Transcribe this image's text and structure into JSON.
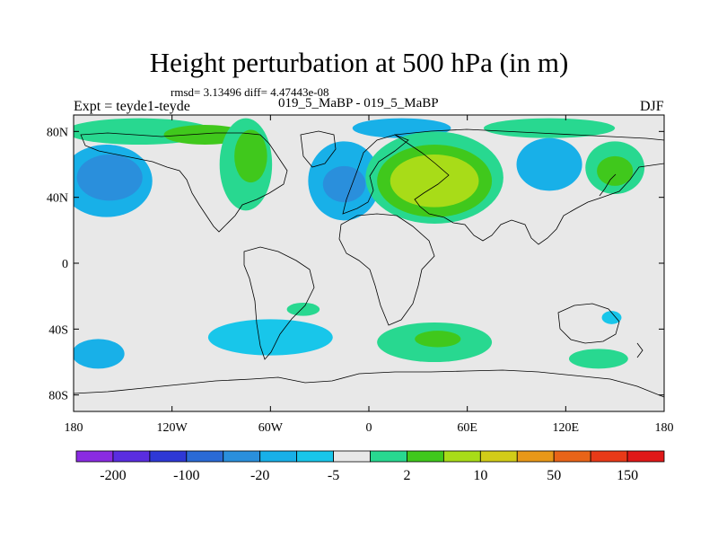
{
  "chart_data": {
    "type": "contour-map",
    "title": "Height perturbation at 500 hPa (in m)",
    "stats": "rmsd= 3.13496 diff= 4.47443e-08",
    "left_label": "Expt = teyde1-teyde",
    "center_label": "019_5_MaBP - 019_5_MaBP",
    "right_label": "DJF",
    "xlim": [
      -180,
      180
    ],
    "ylim": [
      -90,
      90
    ],
    "x_ticks": [
      {
        "value": -180,
        "label": "180"
      },
      {
        "value": -120,
        "label": "120W"
      },
      {
        "value": -60,
        "label": "60W"
      },
      {
        "value": 0,
        "label": "0"
      },
      {
        "value": 60,
        "label": "60E"
      },
      {
        "value": 120,
        "label": "120E"
      },
      {
        "value": 180,
        "label": "180"
      }
    ],
    "y_ticks": [
      {
        "value": 80,
        "label": "80N"
      },
      {
        "value": 40,
        "label": "40N"
      },
      {
        "value": 0,
        "label": "0"
      },
      {
        "value": -40,
        "label": "40S"
      },
      {
        "value": -80,
        "label": "80S"
      }
    ],
    "colorbar": {
      "colors": [
        "#8a2be2",
        "#5a2de0",
        "#2e38d6",
        "#2a6ad6",
        "#2a8fdc",
        "#18b0e8",
        "#18c6ea",
        "#e8e8e8",
        "#28d890",
        "#40c81c",
        "#a8dc18",
        "#d2cc18",
        "#e89818",
        "#e86418",
        "#e83a18",
        "#e01818"
      ],
      "tick_labels": [
        "-200",
        "-100",
        "-20",
        "-5",
        "2",
        "10",
        "50",
        "150"
      ]
    },
    "blobs": [
      {
        "lon": -140,
        "lat": 80,
        "rx": 45,
        "ry": 8,
        "level": 1
      },
      {
        "lon": -100,
        "lat": 78,
        "rx": 25,
        "ry": 6,
        "level": 2
      },
      {
        "lon": 20,
        "lat": 82,
        "rx": 30,
        "ry": 6,
        "level": -2
      },
      {
        "lon": 110,
        "lat": 82,
        "rx": 40,
        "ry": 6,
        "level": 1
      },
      {
        "lon": -160,
        "lat": 50,
        "rx": 28,
        "ry": 22,
        "level": -2
      },
      {
        "lon": -158,
        "lat": 52,
        "rx": 20,
        "ry": 14,
        "level": -3
      },
      {
        "lon": -75,
        "lat": 60,
        "rx": 16,
        "ry": 28,
        "level": 1
      },
      {
        "lon": -72,
        "lat": 65,
        "rx": 10,
        "ry": 16,
        "level": 2
      },
      {
        "lon": -15,
        "lat": 50,
        "rx": 22,
        "ry": 24,
        "level": -2
      },
      {
        "lon": -15,
        "lat": 48,
        "rx": 13,
        "ry": 11,
        "level": -3
      },
      {
        "lon": 40,
        "lat": 52,
        "rx": 42,
        "ry": 28,
        "level": 1
      },
      {
        "lon": 40,
        "lat": 50,
        "rx": 35,
        "ry": 22,
        "level": 2
      },
      {
        "lon": 40,
        "lat": 50,
        "rx": 27,
        "ry": 16,
        "level": 3
      },
      {
        "lon": 110,
        "lat": 60,
        "rx": 20,
        "ry": 16,
        "level": -2
      },
      {
        "lon": 150,
        "lat": 58,
        "rx": 18,
        "ry": 16,
        "level": 1
      },
      {
        "lon": 150,
        "lat": 56,
        "rx": 11,
        "ry": 9,
        "level": 2
      },
      {
        "lon": -60,
        "lat": -45,
        "rx": 38,
        "ry": 11,
        "level": -1
      },
      {
        "lon": 40,
        "lat": -48,
        "rx": 35,
        "ry": 12,
        "level": 1
      },
      {
        "lon": 42,
        "lat": -46,
        "rx": 14,
        "ry": 5,
        "level": 2
      },
      {
        "lon": -165,
        "lat": -55,
        "rx": 16,
        "ry": 9,
        "level": -2
      },
      {
        "lon": 140,
        "lat": -58,
        "rx": 18,
        "ry": 6,
        "level": 1
      },
      {
        "lon": 148,
        "lat": -33,
        "rx": 6,
        "ry": 4,
        "level": -1
      },
      {
        "lon": -40,
        "lat": -28,
        "rx": 10,
        "ry": 4,
        "level": 1
      }
    ]
  }
}
